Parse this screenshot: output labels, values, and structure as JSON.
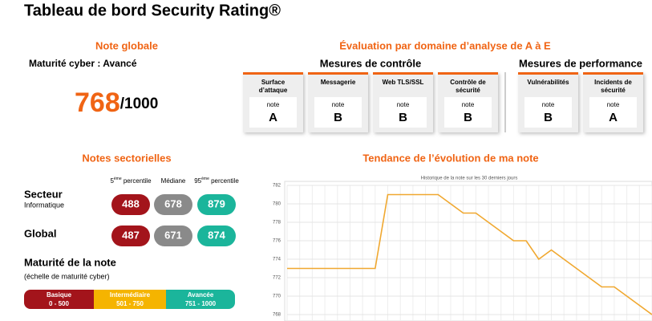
{
  "header": {
    "title": "Tableau de bord Security Rating®"
  },
  "global_score": {
    "heading": "Note globale",
    "maturity": "Maturité cyber :  Avancé",
    "score": 768,
    "scale_label": "/1000"
  },
  "domains": {
    "heading": "Évaluation par domaine d’analyse de A à E",
    "grade_label": "note",
    "groups": [
      {
        "title": "Mesures de contrôle",
        "cards": [
          {
            "label": [
              "Surface",
              "d’attaque"
            ],
            "grade": "A"
          },
          {
            "label": [
              "Messagerie"
            ],
            "grade": "B"
          },
          {
            "label": [
              "Web TLS/SSL"
            ],
            "grade": "B"
          },
          {
            "label": [
              "Contrôle de",
              "sécurité"
            ],
            "grade": "B"
          }
        ]
      },
      {
        "title": "Mesures de performance",
        "cards": [
          {
            "label": [
              "Vulnérabilités"
            ],
            "grade": "B"
          },
          {
            "label": [
              "Incidents de",
              "sécurité"
            ],
            "grade": "A"
          }
        ]
      }
    ]
  },
  "sector_notes": {
    "heading": "Notes sectorielles",
    "columns": [
      {
        "rank": "5",
        "suffix": "ème",
        "label": " percentile"
      },
      {
        "label": "Médiane"
      },
      {
        "rank": "95",
        "suffix": "ème",
        "label": " percentile"
      }
    ],
    "rows": [
      {
        "name": "Secteur",
        "sub": "Informatique",
        "values": [
          488,
          678,
          879
        ]
      },
      {
        "name": "Global",
        "values": [
          487,
          671,
          874
        ]
      }
    ],
    "colors": [
      "#a3141b",
      "#8a8a8a",
      "#1bb59b"
    ]
  },
  "maturity_scale": {
    "title": "Maturité de la note",
    "subtitle": "(échelle de maturité cyber)",
    "levels": [
      {
        "name": "Basique",
        "range": "0 - 500",
        "color": "#a3141b"
      },
      {
        "name": "Intermédiaire",
        "range": "501 - 750",
        "color": "#f5b400"
      },
      {
        "name": "Avancée",
        "range": "751 - 1000",
        "color": "#1bb59b"
      }
    ]
  },
  "trend": {
    "heading": "Tendance de l’évolution de ma note"
  },
  "chart_data": {
    "type": "line",
    "title": "Historique de la note sur les 30 derniers jours",
    "values": [
      773,
      773,
      773,
      773,
      773,
      773,
      773,
      773,
      781,
      781,
      781,
      781,
      781,
      780,
      779,
      779,
      778,
      777,
      776,
      776,
      774,
      775,
      774,
      773,
      772,
      771,
      771,
      770,
      769,
      768
    ],
    "color": "#f0a830",
    "ylim": [
      768,
      782
    ],
    "yticks": [
      768,
      770,
      772,
      774,
      776,
      778,
      780,
      782
    ],
    "grid": true
  }
}
